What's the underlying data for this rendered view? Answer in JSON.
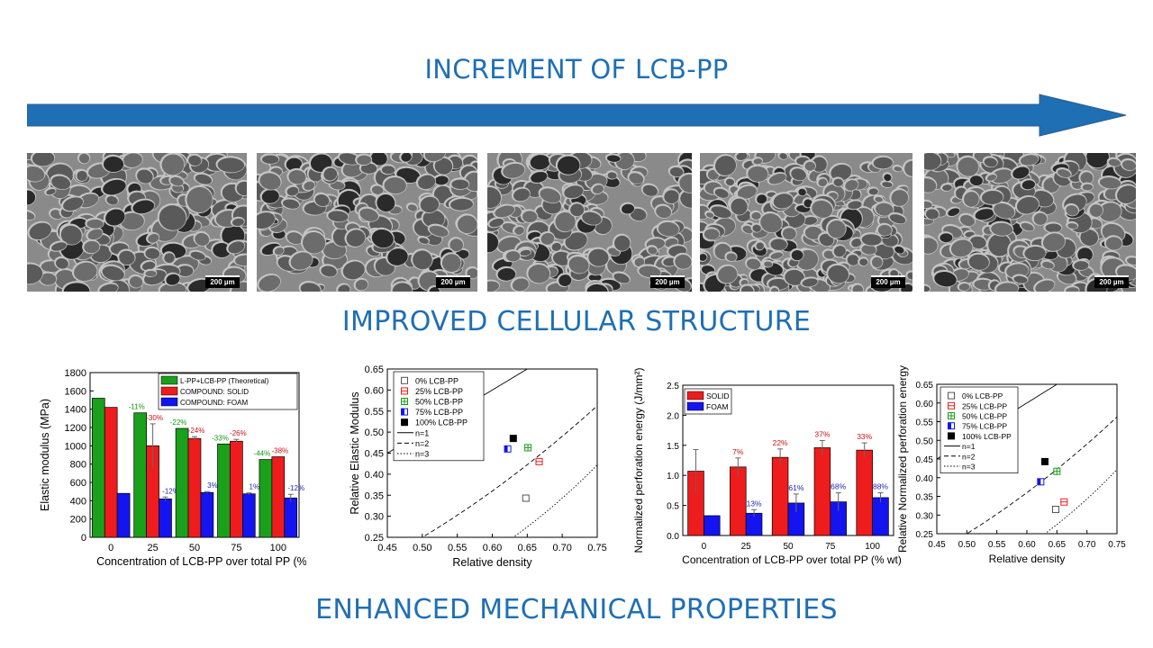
{
  "headings": {
    "top": "INCREMENT OF LCB-PP",
    "middle": "IMPROVED CELLULAR STRUCTURE",
    "bottom": "ENHANCED MECHANICAL PROPERTIES"
  },
  "colors": {
    "accent": "#1f6fb5",
    "green": "#1aa01a",
    "red": "#ee1c1c",
    "blue": "#1414f0"
  },
  "micrographs": [
    {
      "scale": "200 µm"
    },
    {
      "scale": "200 µm"
    },
    {
      "scale": "200 µm"
    },
    {
      "scale": "200 µm"
    },
    {
      "scale": "200 µm"
    }
  ],
  "chart_data": [
    {
      "type": "bar",
      "xlabel": "Concentration of LCB-PP over total PP (% wt)",
      "ylabel": "Elastic modulus (MPa)",
      "ylim": [
        0,
        1800
      ],
      "yticks": [
        0,
        200,
        400,
        600,
        800,
        1000,
        1200,
        1400,
        1600,
        1800
      ],
      "categories": [
        "0",
        "25",
        "50",
        "75",
        "100"
      ],
      "legend_position": "top-right",
      "series": [
        {
          "name": "L-PP+LCB-PP (Theoretical)",
          "color": "#1aa01a",
          "values": [
            1520,
            1360,
            1190,
            1020,
            850
          ],
          "errors": [
            0,
            0,
            0,
            0,
            0
          ],
          "labels": [
            "",
            "-11%",
            "-22%",
            "-33%",
            "-44%"
          ]
        },
        {
          "name": "COMPOUND: SOLID",
          "color": "#ee1c1c",
          "values": [
            1420,
            1000,
            1080,
            1050,
            880
          ],
          "errors": [
            0,
            240,
            20,
            20,
            0
          ],
          "labels": [
            "",
            "-30%",
            "-24%",
            "-26%",
            "-38%"
          ]
        },
        {
          "name": "COMPOUND: FOAM",
          "color": "#1414f0",
          "values": [
            480,
            420,
            490,
            475,
            430
          ],
          "errors": [
            0,
            20,
            10,
            10,
            40
          ],
          "labels": [
            "",
            "-12%",
            "3%",
            "1%",
            "-12%"
          ]
        }
      ]
    },
    {
      "type": "scatter",
      "xlabel": "Relative density",
      "ylabel": "Relative Elastic Modulus",
      "xlim": [
        0.45,
        0.75
      ],
      "ylim": [
        0.25,
        0.65
      ],
      "xticks": [
        "0.45",
        "0.50",
        "0.55",
        "0.60",
        "0.65",
        "0.70",
        "0.75"
      ],
      "yticks": [
        "0.25",
        "0.30",
        "0.35",
        "0.40",
        "0.45",
        "0.50",
        "0.55",
        "0.60",
        "0.65"
      ],
      "legend_position": "top-left",
      "points": [
        {
          "name": "0% LCB-PP",
          "x": 0.648,
          "y": 0.343,
          "marker": "square-open",
          "color": "#555555"
        },
        {
          "name": "25% LCB-PP",
          "x": 0.667,
          "y": 0.43,
          "marker": "square-half-h",
          "color": "#ee1c1c"
        },
        {
          "name": "50% LCB-PP",
          "x": 0.651,
          "y": 0.463,
          "marker": "square-cross",
          "color": "#1aa01a"
        },
        {
          "name": "75% LCB-PP",
          "x": 0.622,
          "y": 0.46,
          "marker": "square-half-v",
          "color": "#1414f0"
        },
        {
          "name": "100% LCB-PP",
          "x": 0.63,
          "y": 0.485,
          "marker": "square-filled",
          "color": "#000000"
        }
      ],
      "curves": [
        {
          "name": "n=1",
          "exponent": 1,
          "dash": ""
        },
        {
          "name": "n=2",
          "exponent": 2,
          "dash": "5,3"
        },
        {
          "name": "n=3",
          "exponent": 3,
          "dash": "1.5,2"
        }
      ]
    },
    {
      "type": "bar",
      "xlabel": "Concentration of LCB-PP over total PP (% wt)",
      "ylabel": "Normalized perforation energy (J/mm²)",
      "ylim": [
        0,
        2.5
      ],
      "yticks": [
        "0.0",
        "0.5",
        "1.0",
        "1.5",
        "2.0",
        "2.5"
      ],
      "categories": [
        "0",
        "25",
        "50",
        "75",
        "100"
      ],
      "legend_position": "top-left",
      "series": [
        {
          "name": "SOLID",
          "color": "#ee1c1c",
          "values": [
            1.07,
            1.14,
            1.3,
            1.46,
            1.42
          ],
          "errors": [
            0.36,
            0.15,
            0.14,
            0.12,
            0.12
          ],
          "labels": [
            "",
            "7%",
            "22%",
            "37%",
            "33%"
          ]
        },
        {
          "name": "FOAM",
          "color": "#1414f0",
          "values": [
            0.33,
            0.37,
            0.54,
            0.56,
            0.63
          ],
          "errors": [
            0,
            0.06,
            0.15,
            0.15,
            0.08
          ],
          "labels": [
            "",
            "13%",
            "61%",
            "68%",
            "88%"
          ]
        }
      ]
    },
    {
      "type": "scatter",
      "xlabel": "Relative density",
      "ylabel": "Relative Normalized perforation energy",
      "xlim": [
        0.45,
        0.75
      ],
      "ylim": [
        0.25,
        0.65
      ],
      "xticks": [
        "0.45",
        "0.50",
        "0.55",
        "0.60",
        "0.65",
        "0.70",
        "0.75"
      ],
      "yticks": [
        "0.25",
        "0.30",
        "0.35",
        "0.40",
        "0.45",
        "0.50",
        "0.55",
        "0.60",
        "0.65"
      ],
      "legend_position": "top-left",
      "points": [
        {
          "name": "0% LCB-PP",
          "x": 0.648,
          "y": 0.315,
          "marker": "square-open",
          "color": "#555555"
        },
        {
          "name": "25% LCB-PP",
          "x": 0.662,
          "y": 0.335,
          "marker": "square-half-h",
          "color": "#ee1c1c"
        },
        {
          "name": "50% LCB-PP",
          "x": 0.65,
          "y": 0.417,
          "marker": "square-cross",
          "color": "#1aa01a"
        },
        {
          "name": "75% LCB-PP",
          "x": 0.623,
          "y": 0.389,
          "marker": "square-half-v",
          "color": "#1414f0"
        },
        {
          "name": "100% LCB-PP",
          "x": 0.63,
          "y": 0.443,
          "marker": "square-filled",
          "color": "#000000"
        }
      ],
      "curves": [
        {
          "name": "n=1",
          "exponent": 1,
          "dash": ""
        },
        {
          "name": "n=2",
          "exponent": 2,
          "dash": "5,3"
        },
        {
          "name": "n=3",
          "exponent": 3,
          "dash": "1.5,2"
        }
      ]
    }
  ]
}
